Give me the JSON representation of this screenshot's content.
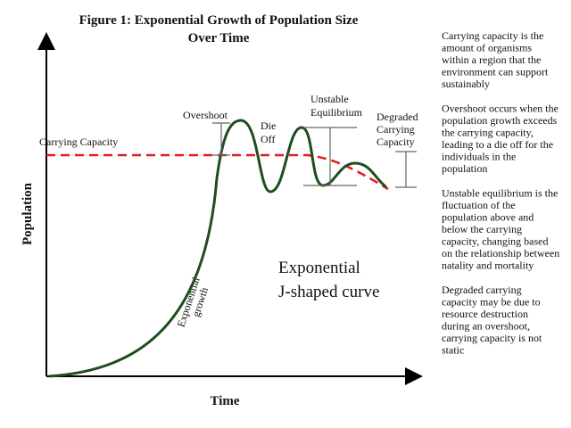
{
  "title": [
    "Figure 1: Exponential Growth of Population Size",
    "Over Time"
  ],
  "axes": {
    "y_label": "Population",
    "x_label": "Time"
  },
  "annotations": {
    "carrying_capacity": "Carrying Capacity",
    "overshoot": "Overshoot",
    "die_off": [
      "Die",
      "Off"
    ],
    "unstable_equilibrium": [
      "Unstable",
      "Equilibrium"
    ],
    "degraded_carrying_capacity": [
      "Degraded",
      "Carrying",
      "Capacity"
    ],
    "exponential_growth": [
      "Exponential",
      "growth"
    ],
    "curve_name": [
      "Exponential",
      "J-shaped curve"
    ]
  },
  "notes": [
    [
      "Carrying capacity is the",
      "amount of organisms",
      "within a region that the",
      "environment can support",
      "sustainably"
    ],
    [
      "Overshoot occurs when the",
      "population growth exceeds",
      "the carrying capacity,",
      "leading to a die off for the",
      "individuals in the",
      "population"
    ],
    [
      "Unstable equilibrium is the",
      "fluctuation of the",
      "population above and",
      "below the carrying",
      "capacity, changing based",
      "on the relationship between",
      "natality and mortality"
    ],
    [
      "Degraded carrying",
      "capacity may be due to",
      "resource destruction",
      "during an overshoot,",
      "carrying capacity is not",
      "static"
    ]
  ]
}
